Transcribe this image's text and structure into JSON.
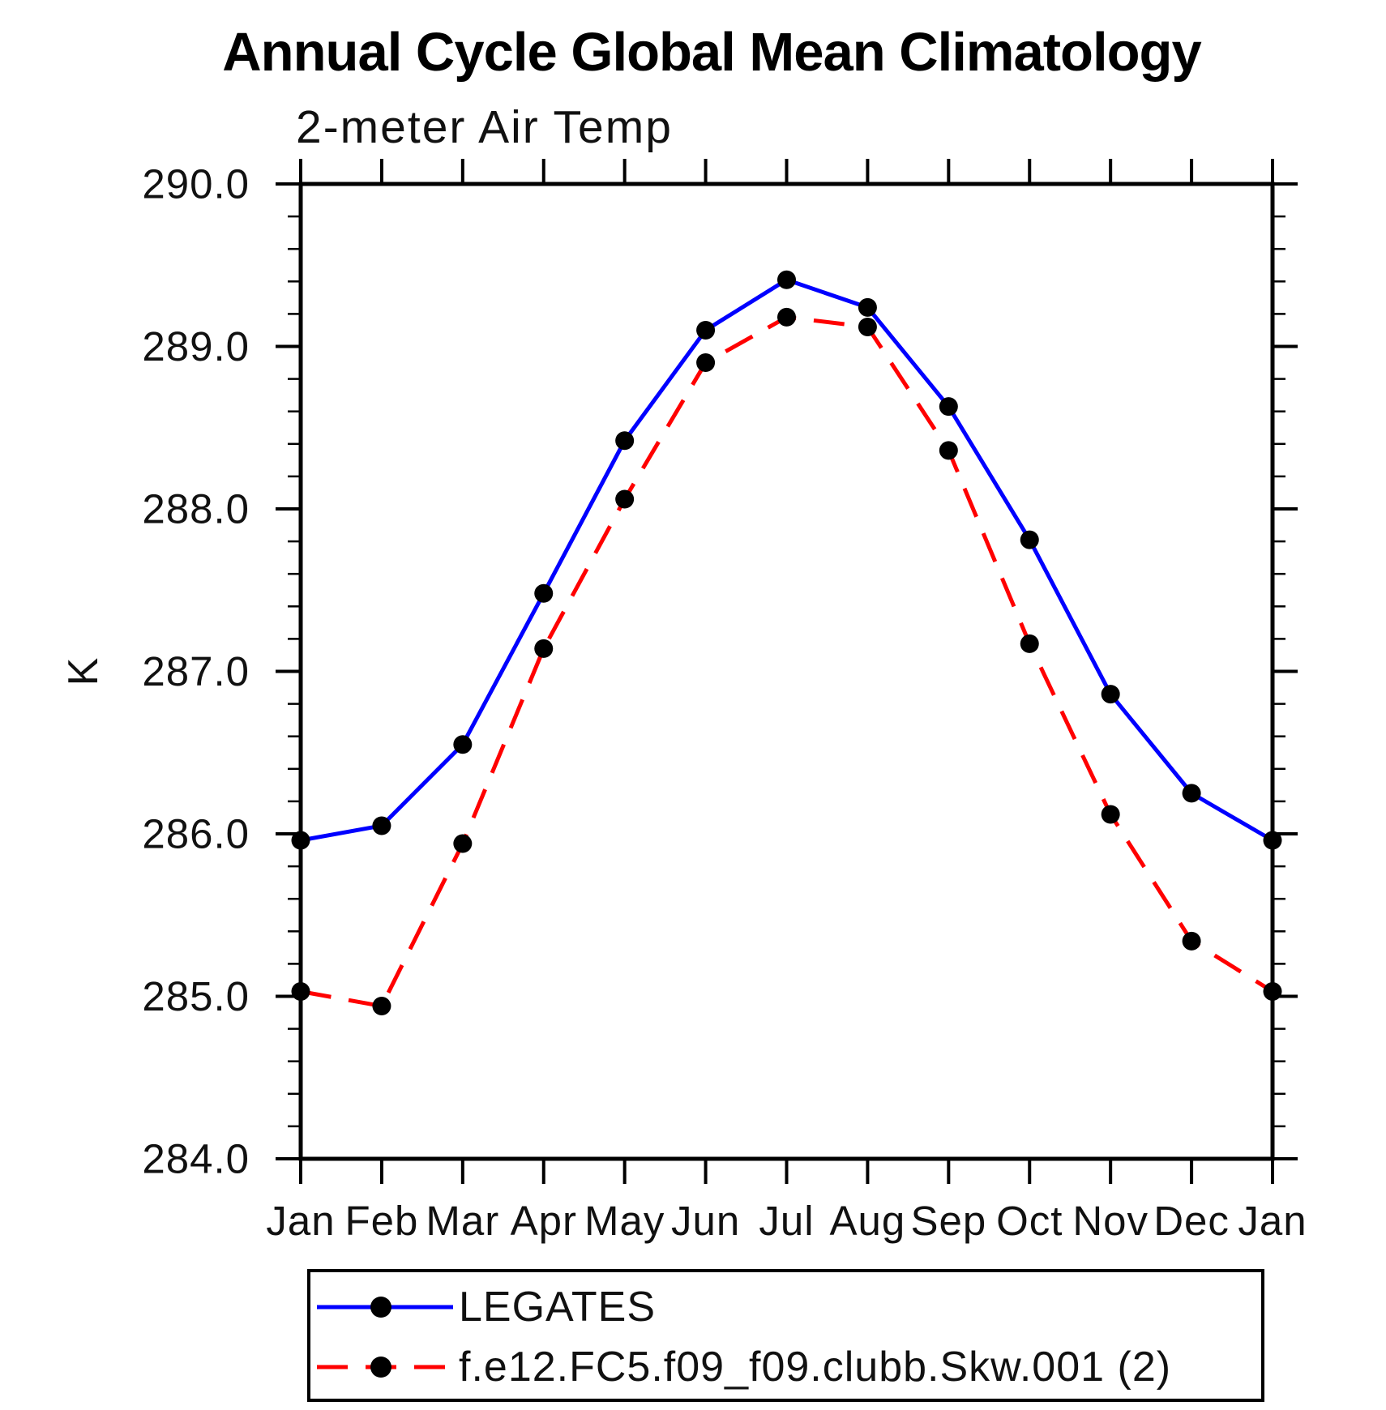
{
  "page": {
    "background_color": "#ffffff",
    "axis_color": "#000000",
    "text_color": "#111111"
  },
  "chart_data": {
    "type": "line",
    "title": "Annual Cycle Global Mean Climatology",
    "subtitle": "2-meter Air Temp",
    "ylabel": "K",
    "xlabel": "",
    "categories": [
      "Jan",
      "Feb",
      "Mar",
      "Apr",
      "May",
      "Jun",
      "Jul",
      "Aug",
      "Sep",
      "Oct",
      "Nov",
      "Dec",
      "Jan"
    ],
    "ylim": [
      284.0,
      290.0
    ],
    "ytick_step": 1.0,
    "ytick_minor_step": 0.2,
    "ytick_labels": [
      "290.0",
      "289.0",
      "288.0",
      "287.0",
      "286.0",
      "285.0",
      "284.0"
    ],
    "grid": false,
    "tick_direction": "out",
    "legend_position": "bottom-left",
    "series": [
      {
        "name": "LEGATES",
        "color": "#0000ff",
        "line_style": "solid",
        "marker": "circle",
        "marker_color": "#000000",
        "values": [
          285.96,
          286.05,
          286.55,
          287.48,
          288.42,
          289.1,
          289.41,
          289.24,
          288.63,
          287.81,
          286.86,
          286.25,
          285.96
        ]
      },
      {
        "name": "f.e12.FC5.f09_f09.clubb.Skw.001 (2)",
        "color": "#ff0000",
        "line_style": "dashed",
        "marker": "circle",
        "marker_color": "#000000",
        "values": [
          285.03,
          284.94,
          285.94,
          287.14,
          288.06,
          288.9,
          289.18,
          289.12,
          288.36,
          287.17,
          286.12,
          285.34,
          285.03
        ]
      }
    ]
  }
}
